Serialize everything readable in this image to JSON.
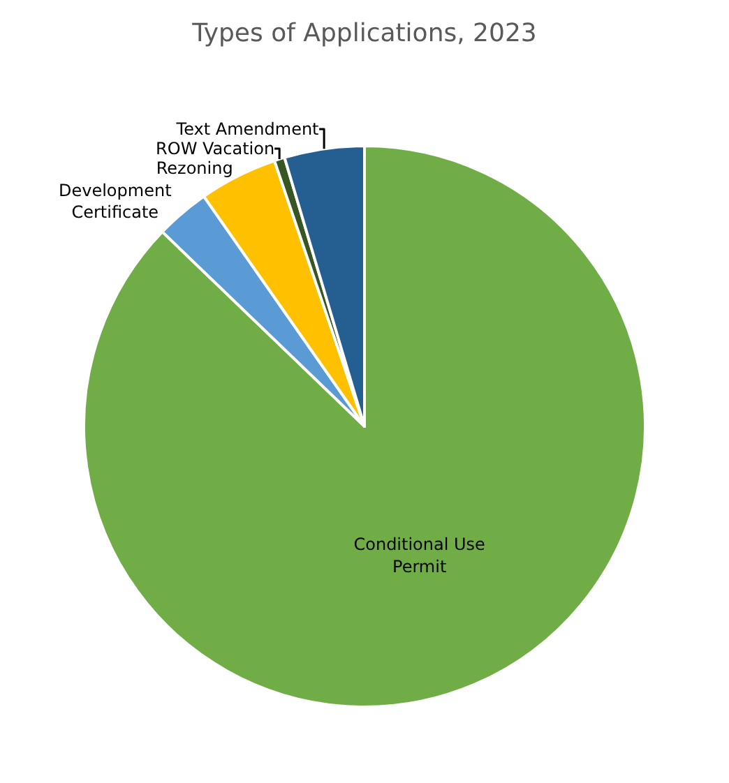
{
  "chart_data": {
    "type": "pie",
    "title": "Types of Applications, 2023",
    "categories": [
      "Conditional Use Permit",
      "Development Certificate",
      "Rezoning",
      "ROW Vacation",
      "Text Amendment"
    ],
    "values": [
      87.2,
      3.1,
      4.5,
      0.6,
      4.6
    ],
    "colors": [
      "#70ad47",
      "#5b9bd5",
      "#ffc000",
      "#375623",
      "#255e91"
    ],
    "legend": false
  }
}
